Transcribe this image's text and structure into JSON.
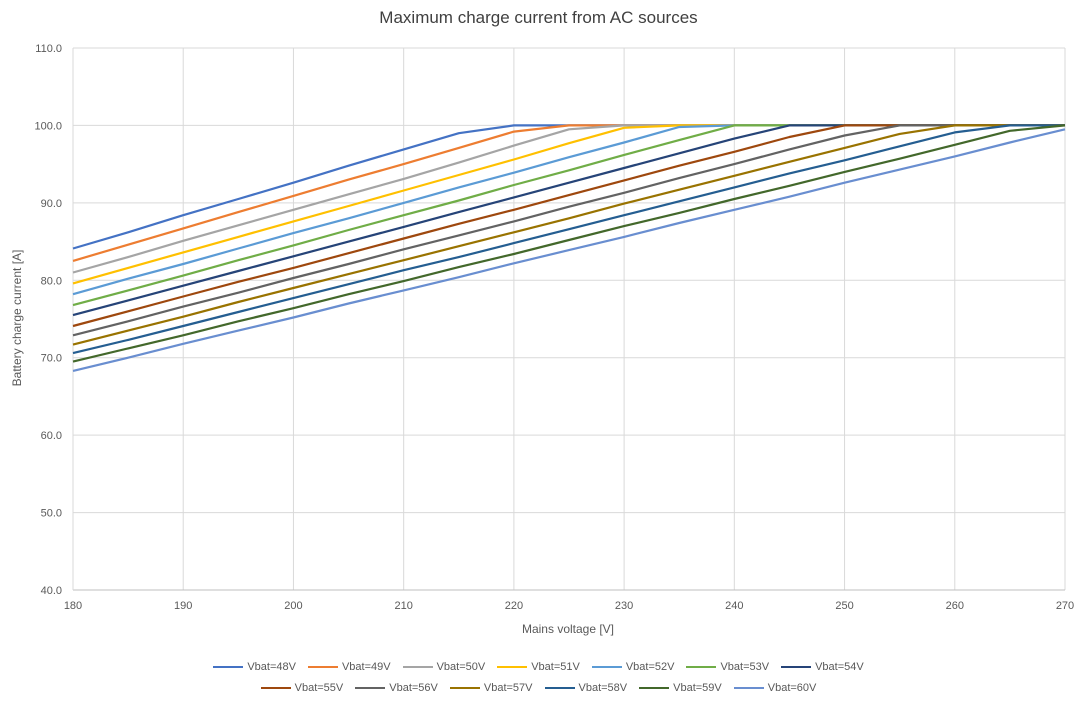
{
  "chart_data": {
    "type": "line",
    "title": "Maximum charge current from AC sources",
    "xlabel": "Mains voltage [V]",
    "ylabel": "Battery charge current [A]",
    "xlim": [
      180,
      270
    ],
    "ylim": [
      40,
      110
    ],
    "x_ticks": [
      "180",
      "190",
      "200",
      "210",
      "220",
      "230",
      "240",
      "250",
      "260",
      "270"
    ],
    "y_ticks": [
      "40.0",
      "50.0",
      "60.0",
      "70.0",
      "80.0",
      "90.0",
      "100.0",
      "110.0"
    ],
    "grid": true,
    "legend_position": "bottom",
    "x": [
      180,
      185,
      190,
      195,
      200,
      205,
      210,
      215,
      220,
      225,
      230,
      235,
      240,
      245,
      250,
      255,
      260,
      265,
      270
    ],
    "series": [
      {
        "name": "Vbat=48V",
        "color": "#4472C4",
        "values": [
          84.1,
          86.2,
          88.4,
          90.5,
          92.6,
          94.8,
          96.9,
          99.0,
          100.0,
          100.0,
          100.0,
          100.0,
          100.0,
          100.0,
          100.0,
          100.0,
          100.0,
          100.0,
          100.0
        ]
      },
      {
        "name": "Vbat=49V",
        "color": "#ED7D31",
        "values": [
          82.5,
          84.6,
          86.7,
          88.8,
          90.9,
          93.0,
          95.0,
          97.1,
          99.2,
          100.0,
          100.0,
          100.0,
          100.0,
          100.0,
          100.0,
          100.0,
          100.0,
          100.0,
          100.0
        ]
      },
      {
        "name": "Vbat=50V",
        "color": "#A5A5A5",
        "values": [
          81.0,
          83.0,
          85.1,
          87.1,
          89.1,
          91.1,
          93.1,
          95.2,
          97.4,
          99.5,
          100.0,
          100.0,
          100.0,
          100.0,
          100.0,
          100.0,
          100.0,
          100.0,
          100.0
        ]
      },
      {
        "name": "Vbat=51V",
        "color": "#FFC000",
        "values": [
          79.6,
          81.6,
          83.6,
          85.6,
          87.6,
          89.6,
          91.6,
          93.6,
          95.6,
          97.7,
          99.7,
          100.0,
          100.0,
          100.0,
          100.0,
          100.0,
          100.0,
          100.0,
          100.0
        ]
      },
      {
        "name": "Vbat=52V",
        "color": "#5B9BD5",
        "values": [
          78.2,
          80.2,
          82.1,
          84.1,
          86.1,
          88.0,
          90.0,
          92.0,
          93.9,
          95.9,
          97.8,
          99.8,
          100.0,
          100.0,
          100.0,
          100.0,
          100.0,
          100.0,
          100.0
        ]
      },
      {
        "name": "Vbat=53V",
        "color": "#70AD47",
        "values": [
          76.8,
          78.7,
          80.6,
          82.6,
          84.5,
          86.5,
          88.4,
          90.3,
          92.3,
          94.2,
          96.2,
          98.1,
          100.0,
          100.0,
          100.0,
          100.0,
          100.0,
          100.0,
          100.0
        ]
      },
      {
        "name": "Vbat=54V",
        "color": "#264478",
        "values": [
          75.5,
          77.4,
          79.3,
          81.2,
          83.1,
          85.0,
          86.9,
          88.8,
          90.7,
          92.6,
          94.5,
          96.4,
          98.3,
          100.0,
          100.0,
          100.0,
          100.0,
          100.0,
          100.0
        ]
      },
      {
        "name": "Vbat=55V",
        "color": "#9E480E",
        "values": [
          74.1,
          76.0,
          77.9,
          79.8,
          81.6,
          83.5,
          85.4,
          87.3,
          89.1,
          91.0,
          92.9,
          94.8,
          96.6,
          98.5,
          100.0,
          100.0,
          100.0,
          100.0,
          100.0
        ]
      },
      {
        "name": "Vbat=56V",
        "color": "#636363",
        "values": [
          72.9,
          74.7,
          76.6,
          78.4,
          80.3,
          82.1,
          84.0,
          85.8,
          87.6,
          89.5,
          91.3,
          93.2,
          95.0,
          96.9,
          98.7,
          100.0,
          100.0,
          100.0,
          100.0
        ]
      },
      {
        "name": "Vbat=57V",
        "color": "#997300",
        "values": [
          71.7,
          73.5,
          75.3,
          77.2,
          79.0,
          80.8,
          82.6,
          84.4,
          86.2,
          88.0,
          89.9,
          91.7,
          93.5,
          95.3,
          97.1,
          98.9,
          100.0,
          100.0,
          100.0
        ]
      },
      {
        "name": "Vbat=58V",
        "color": "#255E91",
        "values": [
          70.6,
          72.3,
          74.1,
          75.9,
          77.7,
          79.5,
          81.3,
          83.0,
          84.8,
          86.6,
          88.4,
          90.2,
          92.0,
          93.8,
          95.5,
          97.3,
          99.1,
          100.0,
          100.0
        ]
      },
      {
        "name": "Vbat=59V",
        "color": "#43682B",
        "values": [
          69.5,
          71.2,
          72.9,
          74.7,
          76.4,
          78.2,
          79.9,
          81.7,
          83.4,
          85.2,
          87.0,
          88.7,
          90.5,
          92.2,
          94.0,
          95.7,
          97.5,
          99.3,
          100.0
        ]
      },
      {
        "name": "Vbat=60V",
        "color": "#698ED0",
        "values": [
          68.3,
          70.0,
          71.8,
          73.5,
          75.2,
          77.0,
          78.7,
          80.4,
          82.2,
          83.9,
          85.6,
          87.4,
          89.1,
          90.8,
          92.6,
          94.3,
          96.0,
          97.8,
          99.5
        ]
      }
    ]
  }
}
